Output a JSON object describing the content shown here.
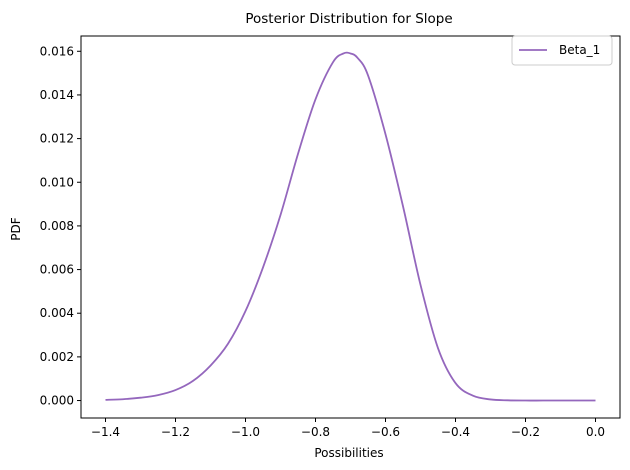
{
  "chart_data": {
    "type": "line",
    "title": "Posterior Distribution for Slope",
    "xlabel": "Possibilities",
    "ylabel": "PDF",
    "xlim": [
      -1.47,
      0.07
    ],
    "ylim": [
      -0.0008,
      0.0167
    ],
    "xticks": [
      -1.4,
      -1.2,
      -1.0,
      -0.8,
      -0.6,
      -0.4,
      -0.2,
      0.0
    ],
    "xtick_labels": [
      "−1.4",
      "−1.2",
      "−1.0",
      "−0.8",
      "−0.6",
      "−0.4",
      "−0.2",
      "0.0"
    ],
    "yticks": [
      0.0,
      0.002,
      0.004,
      0.006,
      0.008,
      0.01,
      0.012,
      0.014,
      0.016
    ],
    "ytick_labels": [
      "0.000",
      "0.002",
      "0.004",
      "0.006",
      "0.008",
      "0.010",
      "0.012",
      "0.014",
      "0.016"
    ],
    "grid": false,
    "legend_position": "top-right",
    "series": [
      {
        "name": "Beta_1",
        "color": "#9467bd",
        "x": [
          -1.4,
          -1.35,
          -1.3,
          -1.25,
          -1.2,
          -1.15,
          -1.1,
          -1.05,
          -1.0,
          -0.95,
          -0.9,
          -0.85,
          -0.8,
          -0.75,
          -0.72,
          -0.7,
          -0.68,
          -0.65,
          -0.6,
          -0.55,
          -0.5,
          -0.45,
          -0.4,
          -0.35,
          -0.3,
          -0.25,
          -0.2,
          -0.15,
          -0.1,
          -0.05,
          0.0
        ],
        "y": [
          3e-05,
          6e-05,
          0.00013,
          0.00025,
          0.00048,
          0.0009,
          0.0016,
          0.0026,
          0.0041,
          0.0061,
          0.0085,
          0.0113,
          0.0138,
          0.0155,
          0.0159,
          0.0159,
          0.0157,
          0.0149,
          0.0122,
          0.0089,
          0.0053,
          0.0024,
          0.0008,
          0.00022,
          5e-05,
          1e-05,
          0.0,
          0.0,
          0.0,
          0.0,
          0.0
        ]
      }
    ]
  }
}
